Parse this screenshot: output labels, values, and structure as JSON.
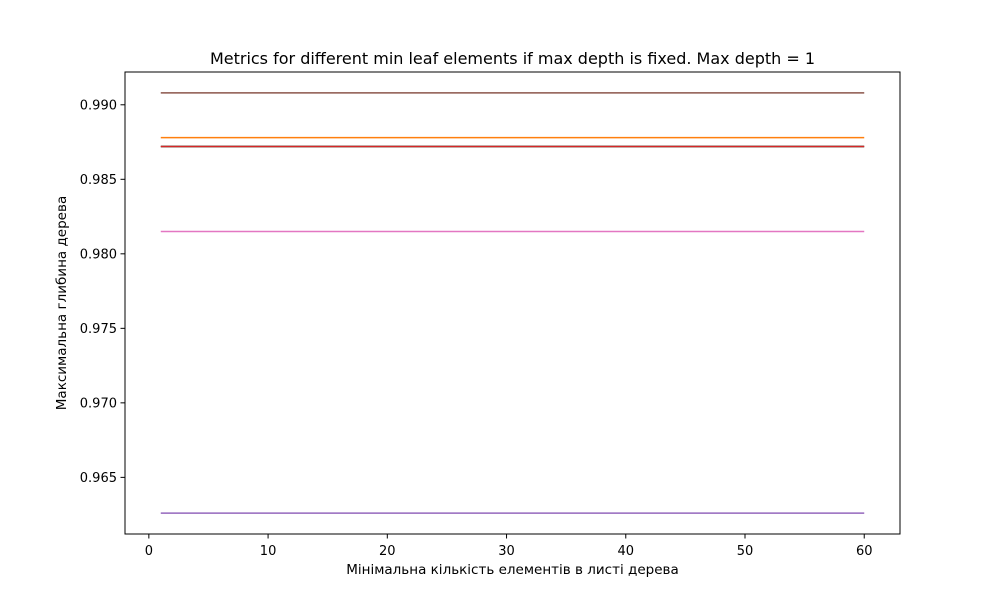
{
  "chart_data": {
    "type": "line",
    "title": "Metrics for different min leaf elements if max depth is fixed. Max depth = 1",
    "xlabel": "Мінімальна кількість елементів в листі дерева",
    "ylabel": "Максимальна глибина дерева",
    "xlim": [
      -2,
      63
    ],
    "ylim": [
      0.9612,
      0.9922
    ],
    "xticks": [
      0,
      10,
      20,
      30,
      40,
      50,
      60
    ],
    "yticks": [
      0.965,
      0.97,
      0.975,
      0.98,
      0.985,
      0.99
    ],
    "x_tick_labels": [
      "0",
      "10",
      "20",
      "30",
      "40",
      "50",
      "60"
    ],
    "y_tick_labels": [
      "0.965",
      "0.970",
      "0.975",
      "0.980",
      "0.985",
      "0.990"
    ],
    "x": [
      1,
      60
    ],
    "series": [
      {
        "values": [
          0.9908,
          0.9908
        ],
        "color": "#8c564b",
        "width": 1.5
      },
      {
        "values": [
          0.9878,
          0.9878
        ],
        "color": "#ff7f0e",
        "width": 1.5
      },
      {
        "values": [
          0.9872,
          0.9872
        ],
        "color": "#8c564b",
        "width": 2.0
      },
      {
        "values": [
          0.9872,
          0.9872
        ],
        "color": "#d62728",
        "width": 1.0
      },
      {
        "values": [
          0.9815,
          0.9815
        ],
        "color": "#e377c2",
        "width": 1.5
      },
      {
        "values": [
          0.9626,
          0.9626
        ],
        "color": "#9467bd",
        "width": 1.5
      }
    ],
    "grid": false,
    "legend": "none"
  }
}
